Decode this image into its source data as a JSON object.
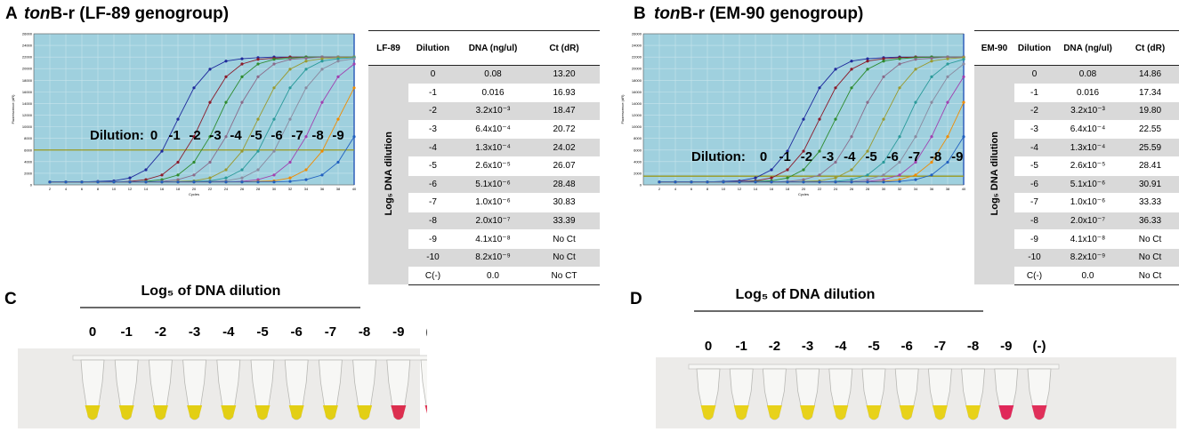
{
  "panel_labels": [
    "A",
    "B",
    "C",
    "D"
  ],
  "titles": [
    {
      "italic": "ton",
      "rest": "B-r (LF-89 genogroup)"
    },
    {
      "italic": "ton",
      "rest": "B-r (EM-90 genogroup)"
    }
  ],
  "chart_data": [
    {
      "type": "line",
      "y_label": "Fluorescence (dR)",
      "x_label": "Cycles",
      "annotation": "Dilution:",
      "xlim": [
        0,
        40
      ],
      "ylim": [
        0,
        26000
      ],
      "xticks": [
        2,
        4,
        6,
        8,
        10,
        12,
        14,
        16,
        18,
        20,
        22,
        24,
        26,
        28,
        30,
        32,
        34,
        36,
        38,
        40
      ],
      "yticks": [
        0,
        2000,
        4000,
        6000,
        8000,
        10000,
        12000,
        14000,
        16000,
        18000,
        20000,
        22000,
        24000,
        26000
      ],
      "grid": true,
      "threshold": 6000,
      "threshold_color": "#9a9a1e",
      "x": [
        2,
        4,
        6,
        8,
        10,
        12,
        14,
        16,
        18,
        20,
        22,
        24,
        26,
        28,
        30,
        32,
        34,
        36,
        38,
        40
      ],
      "series": [
        {
          "name": "0",
          "color": "#1f2a9c",
          "values": [
            500,
            500,
            500,
            600,
            700,
            1200,
            2600,
            5800,
            11300,
            16700,
            19900,
            21300,
            21700,
            21900,
            22000,
            22000,
            22000,
            22000,
            22000,
            22000
          ]
        },
        {
          "name": "-1",
          "color": "#8b1a2a",
          "values": [
            500,
            500,
            500,
            500,
            500,
            600,
            900,
            1700,
            3900,
            8300,
            14200,
            18600,
            20800,
            21600,
            21800,
            22000,
            22000,
            22000,
            22000,
            22000
          ]
        },
        {
          "name": "-2",
          "color": "#2e8b2e",
          "values": [
            500,
            500,
            500,
            500,
            500,
            500,
            600,
            900,
            1700,
            3900,
            8300,
            14200,
            18600,
            20800,
            21600,
            21800,
            22000,
            22000,
            22000,
            22000
          ]
        },
        {
          "name": "-3",
          "color": "#8a6b8a",
          "values": [
            500,
            500,
            500,
            500,
            500,
            500,
            500,
            600,
            900,
            1700,
            3900,
            8300,
            14200,
            18600,
            20800,
            21600,
            21800,
            22000,
            22000,
            22000
          ]
        },
        {
          "name": "-4",
          "color": "#9a9a30",
          "values": [
            500,
            500,
            500,
            500,
            500,
            500,
            500,
            500,
            600,
            700,
            1200,
            2600,
            5800,
            11300,
            16700,
            19900,
            21300,
            21700,
            21900,
            22000
          ]
        },
        {
          "name": "-5",
          "color": "#2a9a9a",
          "values": [
            500,
            500,
            500,
            500,
            500,
            500,
            500,
            500,
            500,
            600,
            700,
            1200,
            2600,
            5800,
            11300,
            16700,
            19900,
            21300,
            21700,
            21900
          ]
        },
        {
          "name": "-6",
          "color": "#8a8aa0",
          "values": [
            500,
            500,
            500,
            500,
            500,
            500,
            500,
            500,
            500,
            500,
            600,
            700,
            1200,
            2600,
            5800,
            11300,
            16700,
            19900,
            21300,
            21700
          ]
        },
        {
          "name": "-7",
          "color": "#a040b0",
          "values": [
            500,
            500,
            500,
            500,
            500,
            500,
            500,
            500,
            500,
            500,
            500,
            500,
            600,
            900,
            1700,
            3900,
            8300,
            14200,
            18600,
            20800
          ]
        },
        {
          "name": "-8",
          "color": "#f08c00",
          "values": [
            500,
            500,
            500,
            500,
            500,
            500,
            500,
            500,
            500,
            500,
            500,
            500,
            500,
            600,
            700,
            1200,
            2600,
            5800,
            11300,
            16700
          ]
        },
        {
          "name": "-9",
          "color": "#2060c0",
          "values": [
            500,
            500,
            500,
            500,
            500,
            500,
            500,
            500,
            500,
            500,
            500,
            500,
            500,
            500,
            500,
            600,
            900,
            1700,
            3900,
            8300
          ]
        }
      ]
    },
    {
      "type": "line",
      "y_label": "Fluorescence (dR)",
      "x_label": "Cycles",
      "annotation": "Dilution:",
      "xlim": [
        0,
        40
      ],
      "ylim": [
        0,
        26000
      ],
      "xticks": [
        2,
        4,
        6,
        8,
        10,
        12,
        14,
        16,
        18,
        20,
        22,
        24,
        26,
        28,
        30,
        32,
        34,
        36,
        38,
        40
      ],
      "yticks": [
        0,
        2000,
        4000,
        6000,
        8000,
        10000,
        12000,
        14000,
        16000,
        18000,
        20000,
        22000,
        24000,
        26000
      ],
      "grid": true,
      "threshold": 1500,
      "threshold_color": "#9a9a1e",
      "x": [
        2,
        4,
        6,
        8,
        10,
        12,
        14,
        16,
        18,
        20,
        22,
        24,
        26,
        28,
        30,
        32,
        34,
        36,
        38,
        40
      ],
      "series": [
        {
          "name": "0",
          "color": "#1f2a9c",
          "values": [
            500,
            500,
            500,
            500,
            600,
            700,
            1200,
            2600,
            5800,
            11300,
            16700,
            19900,
            21300,
            21700,
            21900,
            22000,
            22000,
            22000,
            22000,
            22000
          ]
        },
        {
          "name": "-1",
          "color": "#8b1a2a",
          "values": [
            500,
            500,
            500,
            500,
            500,
            600,
            700,
            1200,
            2600,
            5800,
            11300,
            16700,
            19900,
            21300,
            21700,
            21900,
            22000,
            22000,
            22000,
            22000
          ]
        },
        {
          "name": "-2",
          "color": "#2e8b2e",
          "values": [
            500,
            500,
            500,
            500,
            500,
            500,
            600,
            700,
            1200,
            2600,
            5800,
            11300,
            16700,
            19900,
            21300,
            21700,
            21900,
            22000,
            22000,
            22000
          ]
        },
        {
          "name": "-3",
          "color": "#8a6b8a",
          "values": [
            500,
            500,
            500,
            500,
            500,
            500,
            500,
            500,
            600,
            900,
            1700,
            3900,
            8300,
            14200,
            18600,
            20800,
            21600,
            21800,
            22000,
            22000
          ]
        },
        {
          "name": "-4",
          "color": "#9a9a30",
          "values": [
            500,
            500,
            500,
            500,
            500,
            500,
            500,
            500,
            500,
            600,
            700,
            1200,
            2600,
            5800,
            11300,
            16700,
            19900,
            21300,
            21700,
            21900
          ]
        },
        {
          "name": "-5",
          "color": "#2a9a9a",
          "values": [
            500,
            500,
            500,
            500,
            500,
            500,
            500,
            500,
            500,
            500,
            500,
            600,
            900,
            1700,
            3900,
            8300,
            14200,
            18600,
            20800,
            21600
          ]
        },
        {
          "name": "-6",
          "color": "#8a8aa0",
          "values": [
            500,
            500,
            500,
            500,
            500,
            500,
            500,
            500,
            500,
            500,
            500,
            500,
            600,
            900,
            1700,
            3900,
            8300,
            14200,
            18600,
            20800
          ]
        },
        {
          "name": "-7",
          "color": "#a040b0",
          "values": [
            500,
            500,
            500,
            500,
            500,
            500,
            500,
            500,
            500,
            500,
            500,
            500,
            500,
            600,
            900,
            1700,
            3900,
            8300,
            14200,
            18600
          ]
        },
        {
          "name": "-8",
          "color": "#f08c00",
          "values": [
            500,
            500,
            500,
            500,
            500,
            500,
            500,
            500,
            500,
            500,
            500,
            500,
            500,
            500,
            600,
            900,
            1700,
            3900,
            8300,
            14200
          ]
        },
        {
          "name": "-9",
          "color": "#2060c0",
          "values": [
            500,
            500,
            500,
            500,
            500,
            500,
            500,
            500,
            500,
            500,
            500,
            500,
            500,
            500,
            500,
            600,
            900,
            1700,
            3900,
            8300
          ]
        }
      ]
    }
  ],
  "tables": [
    {
      "headers": [
        "LF-89",
        "Dilution",
        "DNA (ng/ul)",
        "Ct (dR)"
      ],
      "side_label": "Log₅ DNA dilution",
      "rows": [
        [
          "0",
          "0.08",
          "13.20"
        ],
        [
          "-1",
          "0.016",
          "16.93"
        ],
        [
          "-2",
          "3.2x10⁻³",
          "18.47"
        ],
        [
          "-3",
          "6.4x10⁻⁴",
          "20.72"
        ],
        [
          "-4",
          "1.3x10⁻⁴",
          "24.02"
        ],
        [
          "-5",
          "2.6x10⁻⁵",
          "26.07"
        ],
        [
          "-6",
          "5.1x10⁻⁶",
          "28.48"
        ],
        [
          "-7",
          "1.0x10⁻⁶",
          "30.83"
        ],
        [
          "-8",
          "2.0x10⁻⁷",
          "33.39"
        ],
        [
          "-9",
          "4.1x10⁻⁸",
          "No Ct"
        ],
        [
          "-10",
          "8.2x10⁻⁹",
          "No Ct"
        ],
        [
          "C(-)",
          "0.0",
          "No CT"
        ]
      ]
    },
    {
      "headers": [
        "EM-90",
        "Dilution",
        "DNA (ng/ul)",
        "Ct (dR)"
      ],
      "side_label": "Log₅ DNA dilution",
      "rows": [
        [
          "0",
          "0.08",
          "14.86"
        ],
        [
          "-1",
          "0.016",
          "17.34"
        ],
        [
          "-2",
          "3.2x10⁻³",
          "19.80"
        ],
        [
          "-3",
          "6.4x10⁻⁴",
          "22.55"
        ],
        [
          "-4",
          "1.3x10⁻⁴",
          "25.59"
        ],
        [
          "-5",
          "2.6x10⁻⁵",
          "28.41"
        ],
        [
          "-6",
          "5.1x10⁻⁶",
          "30.91"
        ],
        [
          "-7",
          "1.0x10⁻⁶",
          "33.33"
        ],
        [
          "-8",
          "2.0x10⁻⁷",
          "36.33"
        ],
        [
          "-9",
          "4.1x10⁻⁸",
          "No Ct"
        ],
        [
          "-10",
          "8.2x10⁻⁹",
          "No Ct"
        ],
        [
          "C(-)",
          "0.0",
          "No Ct"
        ]
      ]
    }
  ],
  "photos": [
    {
      "heading": "Log₅ of DNA dilution",
      "tubes": [
        {
          "label": "0",
          "color": "#e3cf14"
        },
        {
          "label": "-1",
          "color": "#e3cf14"
        },
        {
          "label": "-2",
          "color": "#e3cf14"
        },
        {
          "label": "-3",
          "color": "#e3cf14"
        },
        {
          "label": "-4",
          "color": "#e3cf14"
        },
        {
          "label": "-5",
          "color": "#e3cf14"
        },
        {
          "label": "-6",
          "color": "#e3cf14"
        },
        {
          "label": "-7",
          "color": "#e3cf14"
        },
        {
          "label": "-8",
          "color": "#e3cf14"
        },
        {
          "label": "-9",
          "color": "#dc2f4f"
        },
        {
          "label": "(-)",
          "color": "#e03a58"
        }
      ]
    },
    {
      "heading": "Log₅ of DNA dilution",
      "tubes": [
        {
          "label": "0",
          "color": "#e8d21a"
        },
        {
          "label": "-1",
          "color": "#e8d21a"
        },
        {
          "label": "-2",
          "color": "#e8d21a"
        },
        {
          "label": "-3",
          "color": "#e8d21a"
        },
        {
          "label": "-4",
          "color": "#e8d21a"
        },
        {
          "label": "-5",
          "color": "#e8d21a"
        },
        {
          "label": "-6",
          "color": "#e8d21a"
        },
        {
          "label": "-7",
          "color": "#e8d21a"
        },
        {
          "label": "-8",
          "color": "#e8d21a"
        },
        {
          "label": "-9",
          "color": "#e0285a"
        },
        {
          "label": "(-)",
          "color": "#e0305a"
        }
      ]
    }
  ]
}
